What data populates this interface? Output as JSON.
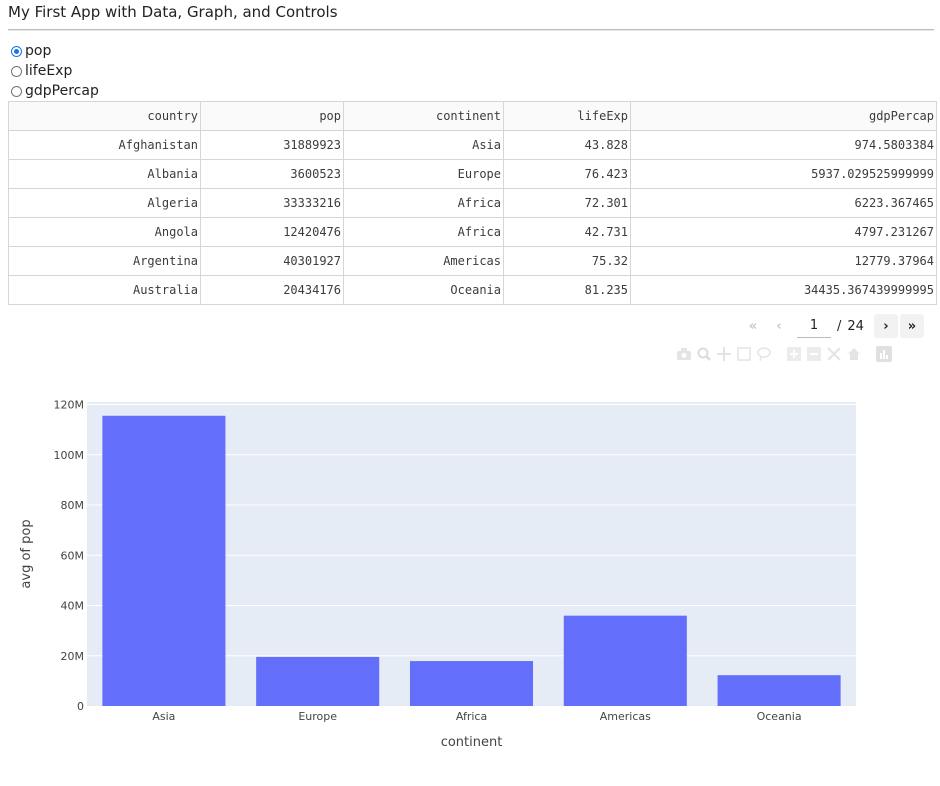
{
  "app": {
    "title": "My First App with Data, Graph, and Controls"
  },
  "radio": {
    "options": [
      "pop",
      "lifeExp",
      "gdpPercap"
    ],
    "selected": "pop"
  },
  "table": {
    "columns": [
      "country",
      "pop",
      "continent",
      "lifeExp",
      "gdpPercap"
    ],
    "rows": [
      [
        "Afghanistan",
        "31889923",
        "Asia",
        "43.828",
        "974.5803384"
      ],
      [
        "Albania",
        "3600523",
        "Europe",
        "76.423",
        "5937.029525999999"
      ],
      [
        "Algeria",
        "33333216",
        "Africa",
        "72.301",
        "6223.367465"
      ],
      [
        "Angola",
        "12420476",
        "Africa",
        "42.731",
        "4797.231267"
      ],
      [
        "Argentina",
        "40301927",
        "Americas",
        "75.32",
        "12779.37964"
      ],
      [
        "Australia",
        "20434176",
        "Oceania",
        "81.235",
        "34435.367439999995"
      ]
    ]
  },
  "pagination": {
    "first_icon": "double-chevron-left-icon",
    "prev_icon": "chevron-left-icon",
    "next_icon": "chevron-right-icon",
    "last_icon": "double-chevron-right-icon",
    "current_page": "1",
    "separator": "/",
    "total_pages": "24"
  },
  "modebar": {
    "icons": [
      "camera-icon",
      "zoom-icon",
      "pan-icon",
      "box-select-icon",
      "lasso-select-icon",
      "zoom-in-icon",
      "zoom-out-icon",
      "autoscale-icon",
      "reset-axes-icon",
      "plotly-logo-icon"
    ]
  },
  "chart_data": {
    "type": "bar",
    "categories": [
      "Asia",
      "Europe",
      "Africa",
      "Americas",
      "Oceania"
    ],
    "values": [
      115513752.3,
      19536617.63,
      17875763.31,
      35954847.36,
      12274973.5
    ],
    "xlabel": "continent",
    "ylabel": "avg of pop",
    "ylim": [
      0,
      121000000
    ],
    "yticks": [
      0,
      20000000,
      40000000,
      60000000,
      80000000,
      100000000,
      120000000
    ],
    "ytick_labels": [
      "0",
      "20M",
      "40M",
      "60M",
      "80M",
      "100M",
      "120M"
    ],
    "grid": true,
    "bar_color": "#636efa",
    "plot_bg": "#e5ecf6"
  }
}
